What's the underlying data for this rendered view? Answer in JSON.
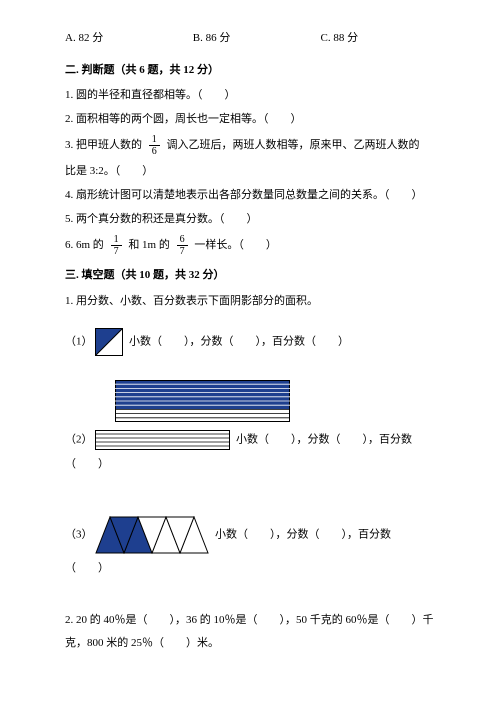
{
  "opts": {
    "a": "A. 82 分",
    "b": "B. 86 分",
    "c": "C. 88 分"
  },
  "section2": {
    "title": "二. 判断题（共 6 题，共 12 分）",
    "q1": "1. 圆的半径和直径都相等。（　　）",
    "q2": "2. 面积相等的两个圆，周长也一定相等。（　　）",
    "q3a": "3. 把甲班人数的",
    "q3frac_n": "1",
    "q3frac_d": "6",
    "q3b": "调入乙班后，两班人数相等，原来甲、乙两班人数的",
    "q3c": "比是 3:2。（　　）",
    "q4": "4. 扇形统计图可以清楚地表示出各部分数量同总数量之间的关系。（　　）",
    "q5": "5. 两个真分数的积还是真分数。（　　）",
    "q6a": "6. 6m 的",
    "q6f1n": "1",
    "q6f1d": "7",
    "q6b": "和 1m 的",
    "q6f2n": "6",
    "q6f2d": "7",
    "q6c": "一样长。（　　）"
  },
  "section3": {
    "title": "三. 填空题（共 10 题，共 32 分）",
    "q1": "1. 用分数、小数、百分数表示下面阴影部分的面积。",
    "s1a": "（1）",
    "s1b": "小数（　　），分数（　　），百分数（　　）",
    "s2a": "（2）",
    "s2b": "小数（　　），分数（　　），百分数",
    "s2c": "（　　）",
    "s3a": "（3）",
    "s3b": "小数（　　），分数（　　），百分数",
    "s3c": "（　　）",
    "q2a": "2. 20 的 40％是（　　），36 的 10％是（　　），50 千克的 60％是（　　）千",
    "q2b": "克，800 米的 25％（　　）米。"
  },
  "colors": {
    "blue": "#1e3f8f",
    "black": "#000000"
  },
  "fig1": {
    "size": 28,
    "border": 1
  },
  "fig2": {
    "w": 175,
    "h": 42,
    "stripes": 10,
    "filled": 7
  },
  "fig3": {
    "triW": 28,
    "triH": 36
  }
}
